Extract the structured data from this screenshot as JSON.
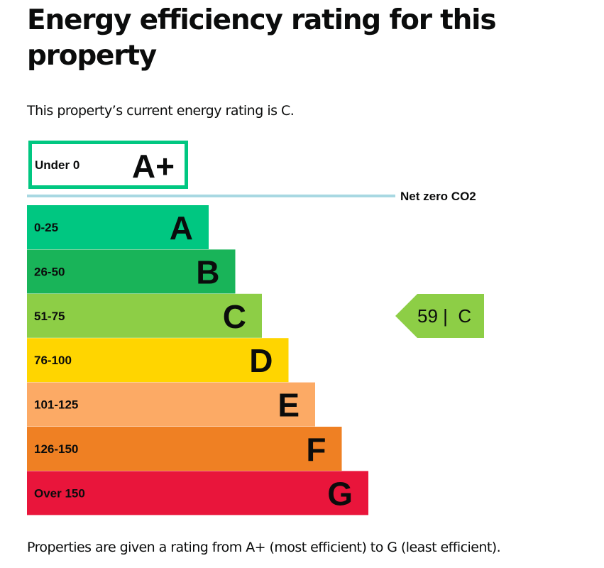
{
  "page": {
    "title": "Energy efficiency rating for this property",
    "intro": "This property’s current energy rating is C.",
    "footer": "Properties are given a rating from A+ (most efficient) to G (least efficient)."
  },
  "chart_data": {
    "type": "bar",
    "title": "Energy efficiency rating for this property",
    "orientation": "horizontal",
    "top_band": {
      "letter": "A+",
      "range": "Under 0",
      "color": "#00c781",
      "style": "outlined"
    },
    "net_zero": {
      "label": "Net zero CO2",
      "color": "#a8d8e2"
    },
    "bands": [
      {
        "letter": "A",
        "range": "0-25",
        "color": "#00c781",
        "width_rank": 1
      },
      {
        "letter": "B",
        "range": "26-50",
        "color": "#19b459",
        "width_rank": 2
      },
      {
        "letter": "C",
        "range": "51-75",
        "color": "#8dce46",
        "width_rank": 3
      },
      {
        "letter": "D",
        "range": "76-100",
        "color": "#ffd500",
        "width_rank": 4
      },
      {
        "letter": "E",
        "range": "101-125",
        "color": "#fcaa65",
        "width_rank": 5
      },
      {
        "letter": "F",
        "range": "126-150",
        "color": "#ef8023",
        "width_rank": 6
      },
      {
        "letter": "G",
        "range": "Over 150",
        "color": "#e9153b",
        "width_rank": 7
      }
    ],
    "current": {
      "score": 59,
      "rating": "C",
      "label": "59 |  C",
      "color": "#8dce46"
    },
    "xlabel": "",
    "ylabel": "",
    "legend": "none",
    "grid": false
  }
}
